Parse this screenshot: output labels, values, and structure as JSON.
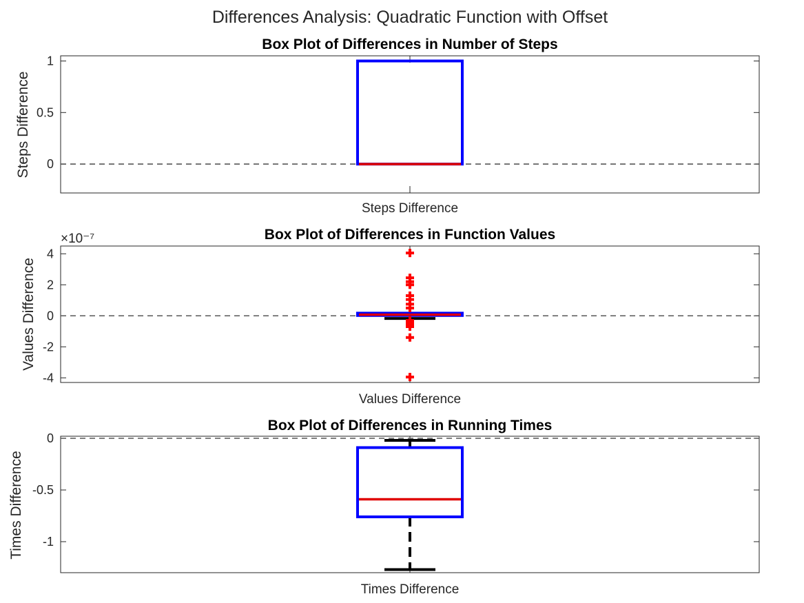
{
  "figure": {
    "title": "Differences Analysis: Quadratic Function with Offset"
  },
  "chart_data": [
    {
      "type": "box",
      "title": "Box Plot of Differences in Number of Steps",
      "xlabel": "Steps Difference",
      "ylabel": "Steps Difference",
      "ylim": [
        -0.28,
        1.05
      ],
      "yticks": [
        0,
        0.5,
        1
      ],
      "ytick_labels": [
        "0",
        "0.5",
        "1"
      ],
      "exponent_label": "",
      "reference_line": 0,
      "box": {
        "q1": 0,
        "median": 0,
        "q3": 1,
        "whisker_low": 0,
        "whisker_high": 1
      },
      "outliers": []
    },
    {
      "type": "box",
      "title": "Box Plot of Differences in Function Values",
      "xlabel": "Values Difference",
      "ylabel": "Values Difference",
      "ylim": [
        -4.3,
        4.5
      ],
      "yticks": [
        -4,
        -2,
        0,
        2,
        4
      ],
      "ytick_labels": [
        "-4",
        "-2",
        "0",
        "2",
        "4"
      ],
      "exponent_label": "×10⁻⁷",
      "reference_line": 0,
      "box": {
        "q1": 0.02,
        "median": 0.07,
        "q3": 0.17,
        "whisker_low": -0.17,
        "whisker_high": 0.2
      },
      "outliers": [
        4.05,
        2.45,
        2.2,
        2.0,
        1.3,
        1.05,
        0.75,
        0.5,
        -0.3,
        -0.45,
        -0.6,
        -0.7,
        -1.4,
        -3.95
      ]
    },
    {
      "type": "box",
      "title": "Box Plot of Differences in Running Times",
      "xlabel": "Times Difference",
      "ylabel": "Times Difference",
      "ylim": [
        -1.3,
        0.02
      ],
      "yticks": [
        -1,
        -0.5,
        0
      ],
      "ytick_labels": [
        "-1",
        "-0.5",
        "0"
      ],
      "exponent_label": "",
      "reference_line": 0,
      "box": {
        "q1": -0.76,
        "median": -0.59,
        "q3": -0.09,
        "whisker_low": -1.27,
        "whisker_high": -0.02
      },
      "outliers": []
    }
  ]
}
